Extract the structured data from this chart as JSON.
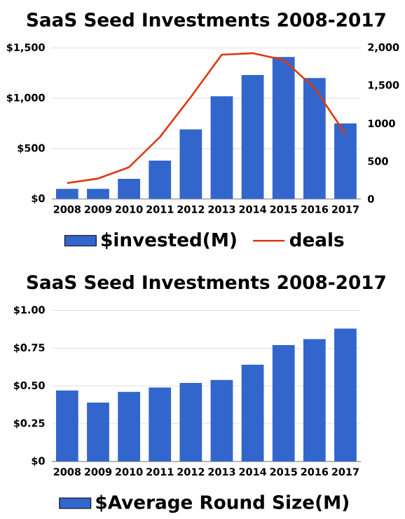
{
  "chart_data": [
    {
      "type": "bar",
      "title": "SaaS Seed Investments 2008-2017",
      "categories": [
        "2008",
        "2009",
        "2010",
        "2011",
        "2012",
        "2013",
        "2014",
        "2015",
        "2016",
        "2017"
      ],
      "series": [
        {
          "name": "$invested(M)",
          "type": "bar",
          "color": "#3366cc",
          "values": [
            100,
            100,
            200,
            380,
            690,
            1020,
            1230,
            1410,
            1200,
            750
          ]
        },
        {
          "name": "deals",
          "type": "line",
          "axis": "y2",
          "color": "#dc3912",
          "values": [
            210,
            270,
            420,
            820,
            1350,
            1910,
            1930,
            1840,
            1470,
            860
          ]
        }
      ],
      "ylim": [
        0,
        1500
      ],
      "yticks": [
        {
          "value": 0,
          "label": "$0"
        },
        {
          "value": 500,
          "label": "$500"
        },
        {
          "value": 1000,
          "label": "$1,000"
        },
        {
          "value": 1500,
          "label": "$1,500"
        }
      ],
      "y2lim": [
        0,
        2000
      ],
      "y2ticks": [
        0,
        500,
        1000,
        {
          "value": 1500,
          "label": "1,500"
        },
        {
          "value": 2000,
          "label": "2,000"
        }
      ],
      "grid": "y",
      "legend": "bottom"
    },
    {
      "type": "bar",
      "title": "SaaS Seed Investments 2008-2017",
      "categories": [
        "2008",
        "2009",
        "2010",
        "2011",
        "2012",
        "2013",
        "2014",
        "2015",
        "2016",
        "2017"
      ],
      "series": [
        {
          "name": "$Average Round Size(M)",
          "color": "#3366cc",
          "values": [
            0.47,
            0.39,
            0.46,
            0.49,
            0.52,
            0.54,
            0.64,
            0.77,
            0.81,
            0.88
          ]
        }
      ],
      "ylim": [
        0,
        1
      ],
      "yticks": [
        {
          "value": 0,
          "label": "$0"
        },
        {
          "value": 0.25,
          "label": "$0.25"
        },
        {
          "value": 0.5,
          "label": "$0.50"
        },
        {
          "value": 0.75,
          "label": "$0.75"
        },
        {
          "value": 1,
          "label": "$1.00"
        }
      ],
      "grid": "y",
      "legend": "bottom"
    }
  ]
}
